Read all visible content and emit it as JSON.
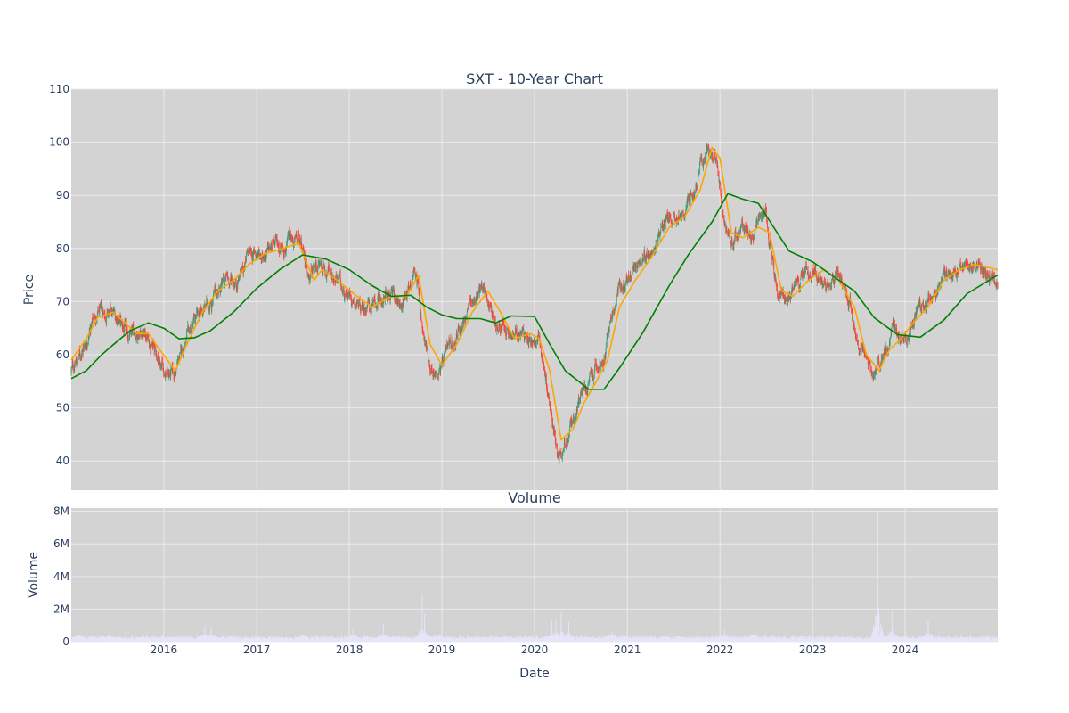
{
  "chart_data": [
    {
      "type": "candlestick",
      "title": "SXT - 10-Year Chart",
      "ylabel": "Price",
      "xlabel": "",
      "ylim": [
        34.5,
        110
      ],
      "xlim": [
        "2015-01-01",
        "2024-12-31"
      ],
      "yticks": [
        40,
        50,
        60,
        70,
        80,
        90,
        100,
        110
      ],
      "xticks": [
        "2016",
        "2017",
        "2018",
        "2019",
        "2020",
        "2021",
        "2022",
        "2023",
        "2024"
      ],
      "grid": true,
      "legend": "none",
      "colors": {
        "up": "#3d9970",
        "down": "#ff4136",
        "ma_short": "#ffa500",
        "ma_long": "#008000",
        "plot_bg": "#d3d3d3",
        "grid": "#ebebf0"
      },
      "price_path": [
        [
          "2015-01-01",
          57
        ],
        [
          "2015-02-15",
          61
        ],
        [
          "2015-04-01",
          67
        ],
        [
          "2015-05-15",
          68
        ],
        [
          "2015-07-01",
          67
        ],
        [
          "2015-08-15",
          63
        ],
        [
          "2015-10-01",
          65
        ],
        [
          "2015-11-15",
          62
        ],
        [
          "2016-01-01",
          57
        ],
        [
          "2016-02-10",
          56
        ],
        [
          "2016-03-15",
          61
        ],
        [
          "2016-05-01",
          66
        ],
        [
          "2016-07-01",
          70
        ],
        [
          "2016-09-01",
          74
        ],
        [
          "2016-10-15",
          74
        ],
        [
          "2016-12-01",
          79
        ],
        [
          "2017-01-15",
          79
        ],
        [
          "2017-03-01",
          80
        ],
        [
          "2017-05-01",
          81
        ],
        [
          "2017-07-01",
          81
        ],
        [
          "2017-07-20",
          74
        ],
        [
          "2017-09-01",
          77
        ],
        [
          "2017-10-15",
          76
        ],
        [
          "2017-12-01",
          73
        ],
        [
          "2018-02-01",
          70
        ],
        [
          "2018-04-01",
          69
        ],
        [
          "2018-06-01",
          71
        ],
        [
          "2018-08-01",
          70
        ],
        [
          "2018-09-20",
          77
        ],
        [
          "2018-10-20",
          63
        ],
        [
          "2018-12-01",
          56
        ],
        [
          "2019-01-15",
          59
        ],
        [
          "2019-03-01",
          64
        ],
        [
          "2019-05-01",
          70
        ],
        [
          "2019-06-15",
          73
        ],
        [
          "2019-08-01",
          66
        ],
        [
          "2019-10-01",
          63
        ],
        [
          "2019-12-01",
          64
        ],
        [
          "2020-01-01",
          62
        ],
        [
          "2020-01-20",
          63
        ],
        [
          "2020-03-01",
          50
        ],
        [
          "2020-04-01",
          42
        ],
        [
          "2020-05-15",
          45
        ],
        [
          "2020-07-01",
          52
        ],
        [
          "2020-08-15",
          55
        ],
        [
          "2020-10-01",
          60
        ],
        [
          "2020-11-15",
          71
        ],
        [
          "2021-01-01",
          75
        ],
        [
          "2021-03-01",
          77
        ],
        [
          "2021-05-01",
          83
        ],
        [
          "2021-07-01",
          87
        ],
        [
          "2021-08-15",
          86
        ],
        [
          "2021-10-01",
          92
        ],
        [
          "2021-11-15",
          99
        ],
        [
          "2021-12-15",
          97
        ],
        [
          "2022-01-15",
          85
        ],
        [
          "2022-02-15",
          81
        ],
        [
          "2022-04-01",
          84
        ],
        [
          "2022-05-15",
          82
        ],
        [
          "2022-07-01",
          87
        ],
        [
          "2022-08-15",
          72
        ],
        [
          "2022-10-01",
          71
        ],
        [
          "2022-11-15",
          74
        ],
        [
          "2023-01-01",
          76
        ],
        [
          "2023-03-01",
          74
        ],
        [
          "2023-04-15",
          75
        ],
        [
          "2023-06-01",
          70
        ],
        [
          "2023-07-01",
          61
        ],
        [
          "2023-09-01",
          56
        ],
        [
          "2023-10-01",
          60
        ],
        [
          "2023-11-15",
          64
        ],
        [
          "2024-01-01",
          63
        ],
        [
          "2024-02-15",
          68
        ],
        [
          "2024-04-01",
          70
        ],
        [
          "2024-06-01",
          75
        ],
        [
          "2024-07-15",
          76
        ],
        [
          "2024-09-01",
          77
        ],
        [
          "2024-10-15",
          78
        ],
        [
          "2024-12-31",
          73
        ]
      ],
      "series": [
        {
          "type": "line",
          "color": "#ffa500",
          "points": [
            [
              "2015-01-01",
              59
            ],
            [
              "2015-03-01",
              63
            ],
            [
              "2015-04-15",
              67
            ],
            [
              "2015-06-15",
              68
            ],
            [
              "2015-08-01",
              66
            ],
            [
              "2015-09-15",
              64
            ],
            [
              "2015-11-01",
              64
            ],
            [
              "2015-12-15",
              61
            ],
            [
              "2016-02-15",
              57
            ],
            [
              "2016-04-01",
              62
            ],
            [
              "2016-06-01",
              68
            ],
            [
              "2016-08-01",
              72
            ],
            [
              "2016-10-01",
              74
            ],
            [
              "2016-12-01",
              77
            ],
            [
              "2017-02-01",
              79
            ],
            [
              "2017-04-15",
              80
            ],
            [
              "2017-06-15",
              81
            ],
            [
              "2017-08-15",
              74
            ],
            [
              "2017-09-15",
              76
            ],
            [
              "2017-11-15",
              74
            ],
            [
              "2018-02-01",
              71
            ],
            [
              "2018-04-01",
              69
            ],
            [
              "2018-06-15",
              71
            ],
            [
              "2018-08-15",
              71
            ],
            [
              "2018-10-01",
              75
            ],
            [
              "2018-11-15",
              62
            ],
            [
              "2019-01-01",
              58
            ],
            [
              "2019-03-01",
              62
            ],
            [
              "2019-05-01",
              68
            ],
            [
              "2019-07-01",
              72
            ],
            [
              "2019-08-20",
              68
            ],
            [
              "2019-10-15",
              63
            ],
            [
              "2019-12-15",
              64
            ],
            [
              "2020-01-20",
              63
            ],
            [
              "2020-03-01",
              57
            ],
            [
              "2020-04-15",
              44
            ],
            [
              "2020-06-01",
              46
            ],
            [
              "2020-07-15",
              51
            ],
            [
              "2020-09-01",
              55
            ],
            [
              "2020-10-15",
              59
            ],
            [
              "2020-12-01",
              69
            ],
            [
              "2021-02-01",
              74
            ],
            [
              "2021-04-01",
              78
            ],
            [
              "2021-06-15",
              84
            ],
            [
              "2021-08-15",
              86
            ],
            [
              "2021-10-15",
              91
            ],
            [
              "2021-12-01",
              99
            ],
            [
              "2022-01-01",
              97
            ],
            [
              "2022-02-15",
              83
            ],
            [
              "2022-04-01",
              82
            ],
            [
              "2022-06-01",
              84
            ],
            [
              "2022-07-15",
              83
            ],
            [
              "2022-09-01",
              72
            ],
            [
              "2022-10-15",
              71
            ],
            [
              "2022-12-15",
              74
            ],
            [
              "2023-02-15",
              76
            ],
            [
              "2023-04-15",
              74
            ],
            [
              "2023-06-15",
              69
            ],
            [
              "2023-08-01",
              60
            ],
            [
              "2023-09-20",
              57
            ],
            [
              "2023-11-01",
              61
            ],
            [
              "2023-12-15",
              63
            ],
            [
              "2024-02-01",
              66
            ],
            [
              "2024-04-01",
              69
            ],
            [
              "2024-06-01",
              74
            ],
            [
              "2024-08-01",
              76
            ],
            [
              "2024-10-01",
              77
            ],
            [
              "2024-12-31",
              76
            ]
          ]
        },
        {
          "type": "line",
          "color": "#008000",
          "points": [
            [
              "2015-01-01",
              55.5
            ],
            [
              "2015-03-01",
              57
            ],
            [
              "2015-05-01",
              60
            ],
            [
              "2015-07-01",
              62.5
            ],
            [
              "2015-08-20",
              64.5
            ],
            [
              "2015-11-01",
              66
            ],
            [
              "2016-01-01",
              65
            ],
            [
              "2016-03-01",
              63
            ],
            [
              "2016-05-01",
              63.2
            ],
            [
              "2016-07-01",
              64.5
            ],
            [
              "2016-10-01",
              68
            ],
            [
              "2017-01-01",
              72.5
            ],
            [
              "2017-04-01",
              76
            ],
            [
              "2017-07-01",
              78.8
            ],
            [
              "2017-10-01",
              78
            ],
            [
              "2018-01-01",
              76
            ],
            [
              "2018-04-01",
              73
            ],
            [
              "2018-06-15",
              71
            ],
            [
              "2018-09-01",
              71.2
            ],
            [
              "2018-11-01",
              69
            ],
            [
              "2019-01-01",
              67.5
            ],
            [
              "2019-03-01",
              66.8
            ],
            [
              "2019-06-01",
              66.8
            ],
            [
              "2019-08-01",
              66
            ],
            [
              "2019-10-01",
              67.3
            ],
            [
              "2020-01-01",
              67.2
            ],
            [
              "2020-03-01",
              62
            ],
            [
              "2020-05-01",
              57
            ],
            [
              "2020-08-01",
              53.5
            ],
            [
              "2020-10-01",
              53.5
            ],
            [
              "2020-12-01",
              57.5
            ],
            [
              "2021-03-01",
              64
            ],
            [
              "2021-06-15",
              73
            ],
            [
              "2021-09-01",
              79
            ],
            [
              "2021-12-01",
              85
            ],
            [
              "2022-02-01",
              90.3
            ],
            [
              "2022-04-01",
              89.3
            ],
            [
              "2022-06-01",
              88.5
            ],
            [
              "2022-08-01",
              84
            ],
            [
              "2022-10-01",
              79.5
            ],
            [
              "2023-01-01",
              77.5
            ],
            [
              "2023-04-01",
              74.5
            ],
            [
              "2023-06-15",
              72
            ],
            [
              "2023-09-01",
              67
            ],
            [
              "2023-12-01",
              63.8
            ],
            [
              "2024-03-01",
              63.3
            ],
            [
              "2024-06-01",
              66.5
            ],
            [
              "2024-09-01",
              71.5
            ],
            [
              "2024-12-31",
              75
            ]
          ]
        }
      ]
    },
    {
      "type": "bar",
      "title": "Volume",
      "xlabel": "Date",
      "ylabel": "Volume",
      "ylim": [
        0,
        8200000
      ],
      "xlim": [
        "2015-01-01",
        "2024-12-31"
      ],
      "yticks": [
        0,
        2000000,
        4000000,
        6000000,
        8000000
      ],
      "ytick_labels": [
        "0",
        "2M",
        "4M",
        "6M",
        "8M"
      ],
      "xticks": [
        "2016",
        "2017",
        "2018",
        "2019",
        "2020",
        "2021",
        "2022",
        "2023",
        "2024"
      ],
      "grid": true,
      "colors": {
        "bar": "#e6e6fa",
        "plot_bg": "#d3d3d3"
      },
      "baseline": 250000,
      "spikes": [
        [
          "2015-02-01",
          750000
        ],
        [
          "2015-06-01",
          600000
        ],
        [
          "2016-06-10",
          1000000
        ],
        [
          "2016-07-05",
          950000
        ],
        [
          "2017-07-01",
          600000
        ],
        [
          "2018-01-15",
          800000
        ],
        [
          "2018-05-15",
          1100000
        ],
        [
          "2018-10-15",
          2900000
        ],
        [
          "2018-10-25",
          1700000
        ],
        [
          "2018-12-15",
          1000000
        ],
        [
          "2020-03-10",
          1300000
        ],
        [
          "2020-03-25",
          1400000
        ],
        [
          "2020-04-15",
          1800000
        ],
        [
          "2020-05-15",
          1200000
        ],
        [
          "2020-11-01",
          1300000
        ],
        [
          "2022-01-20",
          700000
        ],
        [
          "2022-05-15",
          1000000
        ],
        [
          "2023-09-15",
          8000000
        ],
        [
          "2023-11-10",
          1900000
        ],
        [
          "2024-04-01",
          1300000
        ]
      ]
    }
  ]
}
